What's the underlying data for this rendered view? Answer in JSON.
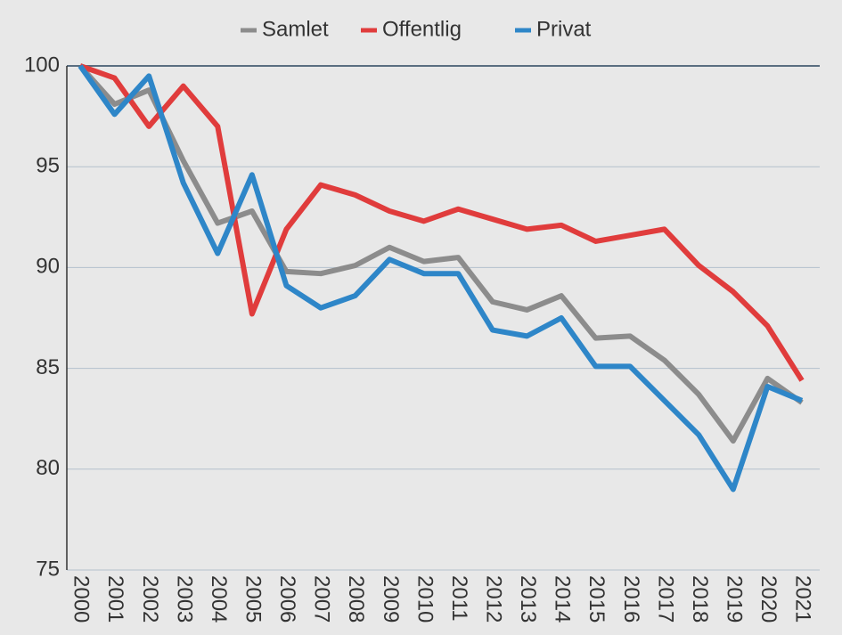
{
  "chart_data": {
    "type": "line",
    "categories": [
      "2000",
      "2001",
      "2002",
      "2003",
      "2004",
      "2005",
      "2006",
      "2007",
      "2008",
      "2009",
      "2010",
      "2011",
      "2012",
      "2013",
      "2014",
      "2015",
      "2016",
      "2017",
      "2018",
      "2019",
      "2020",
      "2021"
    ],
    "series": [
      {
        "name": "Samlet",
        "color": "#8c8c8c",
        "values": [
          100,
          98.1,
          98.8,
          95.3,
          92.2,
          92.8,
          89.8,
          89.7,
          90.1,
          91.0,
          90.3,
          90.5,
          88.3,
          87.9,
          88.6,
          86.5,
          86.6,
          85.4,
          83.7,
          81.4,
          84.5,
          83.3
        ]
      },
      {
        "name": "Offentlig",
        "color": "#e03c3c",
        "values": [
          100,
          99.4,
          97.0,
          99.0,
          97.0,
          87.7,
          91.9,
          94.1,
          93.6,
          92.8,
          92.3,
          92.9,
          92.4,
          91.9,
          92.1,
          91.3,
          91.6,
          91.9,
          90.1,
          88.8,
          87.1,
          84.4
        ]
      },
      {
        "name": "Privat",
        "color": "#2e86c8",
        "values": [
          100,
          97.6,
          99.5,
          94.2,
          90.7,
          94.6,
          89.1,
          88.0,
          88.6,
          90.4,
          89.7,
          89.7,
          86.9,
          86.6,
          87.5,
          85.1,
          85.1,
          83.4,
          81.7,
          79.0,
          84.1,
          83.4
        ]
      }
    ],
    "ylim": [
      75,
      100
    ],
    "yticks": [
      75,
      80,
      85,
      90,
      95,
      100
    ],
    "grid": true,
    "legend": "top"
  }
}
